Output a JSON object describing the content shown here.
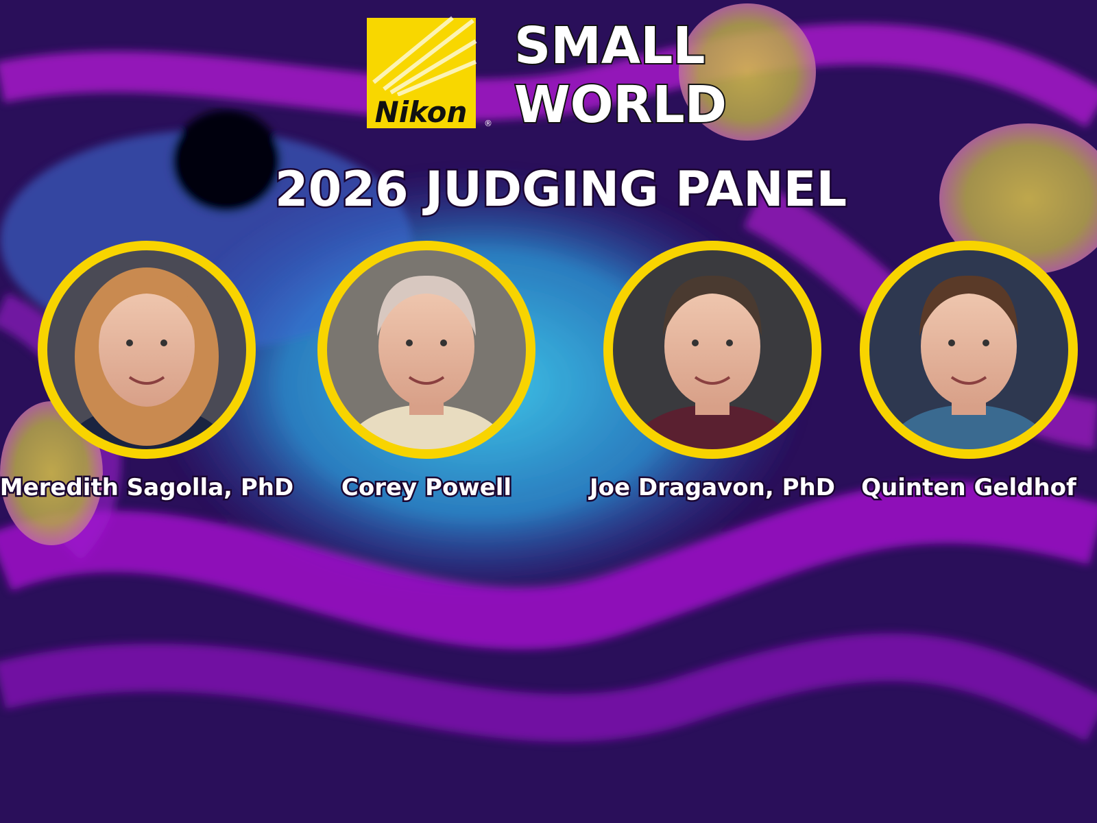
{
  "logo": {
    "brand": "Nikon",
    "mark": "®",
    "line1": "SMALL",
    "line2": "WORLD"
  },
  "title": "2026 JUDGING PANEL",
  "judges": [
    {
      "name": "Meredith Sagolla, PhD"
    },
    {
      "name": "Corey Powell"
    },
    {
      "name": "Joe Dragavon, PhD"
    },
    {
      "name": "Quinten Geldhof"
    }
  ]
}
